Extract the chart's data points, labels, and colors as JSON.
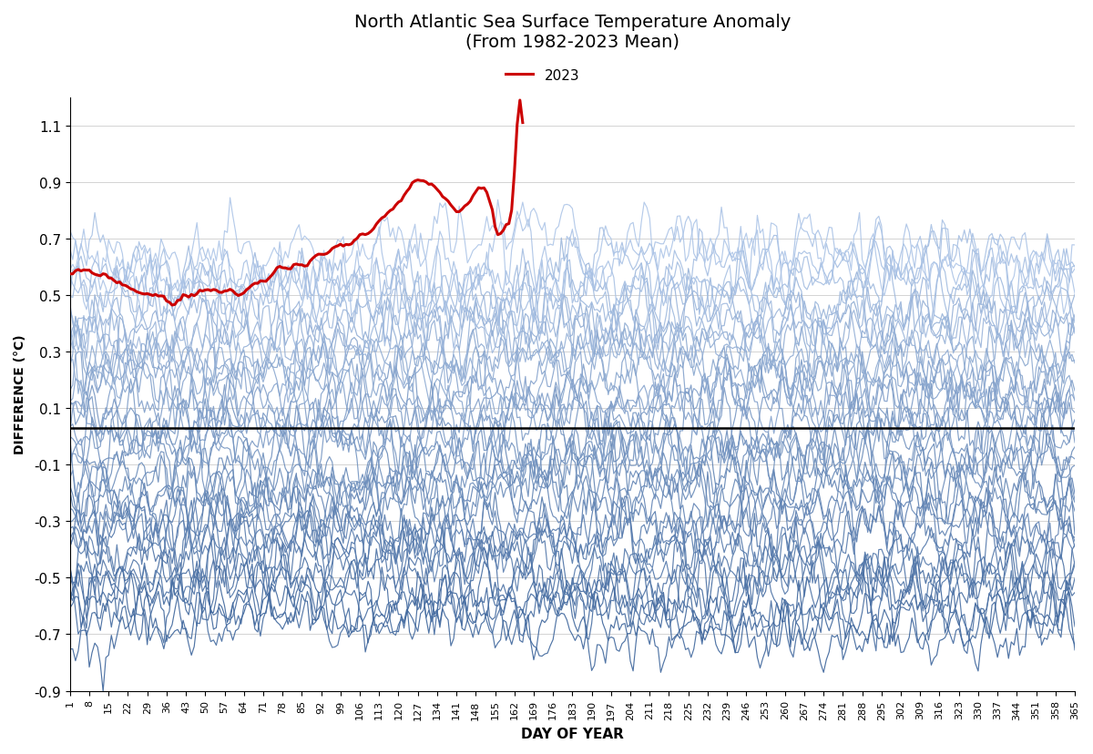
{
  "title_line1": "North Atlantic Sea Surface Temperature Anomaly",
  "title_line2": "(From 1982-2023 Mean)",
  "xlabel": "DAY OF YEAR",
  "ylabel": "DIFFERENCE (°C)",
  "ylim": [
    -0.9,
    1.2
  ],
  "yticks": [
    -0.9,
    -0.7,
    -0.5,
    -0.3,
    -0.1,
    0.1,
    0.3,
    0.5,
    0.7,
    0.9,
    1.1
  ],
  "xtick_labels": [
    1,
    8,
    15,
    22,
    29,
    36,
    43,
    50,
    57,
    64,
    71,
    78,
    85,
    92,
    99,
    106,
    113,
    120,
    127,
    134,
    141,
    148,
    155,
    162,
    169,
    176,
    183,
    190,
    197,
    204,
    211,
    218,
    225,
    232,
    239,
    246,
    253,
    260,
    267,
    274,
    281,
    288,
    295,
    302,
    309,
    316,
    323,
    330,
    337,
    344,
    351,
    358,
    365
  ],
  "zero_line_y": 0.03,
  "legend_label": "2023",
  "line_color_2023": "#cc0000",
  "background_color": "#ffffff",
  "n_years": 41,
  "seed": 42,
  "light_blue_rgb": [
    174,
    198,
    232
  ],
  "dark_blue_rgb": [
    60,
    100,
    155
  ]
}
